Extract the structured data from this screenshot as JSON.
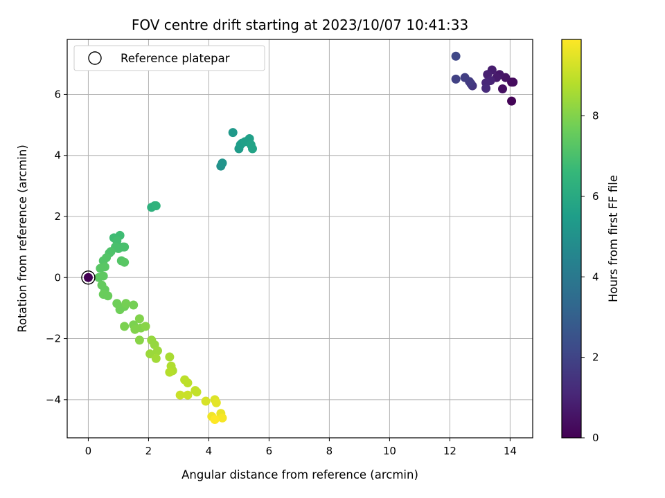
{
  "chart_data": {
    "type": "scatter",
    "title": "FOV centre drift starting at 2023/10/07 10:41:33",
    "xlabel": "Angular distance from reference (arcmin)",
    "ylabel": "Rotation from reference (arcmin)",
    "xlim": [
      -0.7,
      14.75
    ],
    "ylim": [
      -5.25,
      7.8
    ],
    "xticks": [
      0,
      2,
      4,
      6,
      8,
      10,
      12,
      14
    ],
    "yticks": [
      -4,
      -2,
      0,
      2,
      4,
      6
    ],
    "grid": true,
    "legend": {
      "position": "top-left",
      "entries": [
        "Reference platepar"
      ]
    },
    "reference_point": {
      "x": 0,
      "y": 0
    },
    "colorbar": {
      "label": "Hours from first FF file",
      "range": [
        0,
        9.9
      ],
      "ticks": [
        0,
        2,
        4,
        6,
        8
      ],
      "colormap": "viridis"
    },
    "points": [
      {
        "x": 14.05,
        "y": 5.78,
        "h": 0.1
      },
      {
        "x": 14.05,
        "y": 6.4,
        "h": 0.2
      },
      {
        "x": 14.1,
        "y": 6.4,
        "h": 0.3
      },
      {
        "x": 13.75,
        "y": 6.18,
        "h": 0.4
      },
      {
        "x": 13.85,
        "y": 6.55,
        "h": 0.5
      },
      {
        "x": 13.65,
        "y": 6.65,
        "h": 0.6
      },
      {
        "x": 13.55,
        "y": 6.55,
        "h": 0.7
      },
      {
        "x": 13.4,
        "y": 6.8,
        "h": 0.8
      },
      {
        "x": 13.25,
        "y": 6.65,
        "h": 0.9
      },
      {
        "x": 13.35,
        "y": 6.45,
        "h": 1.0
      },
      {
        "x": 13.2,
        "y": 6.38,
        "h": 1.1
      },
      {
        "x": 13.2,
        "y": 6.2,
        "h": 1.2
      },
      {
        "x": 12.75,
        "y": 6.28,
        "h": 1.5
      },
      {
        "x": 12.7,
        "y": 6.35,
        "h": 1.6
      },
      {
        "x": 12.65,
        "y": 6.42,
        "h": 1.7
      },
      {
        "x": 12.5,
        "y": 6.55,
        "h": 1.8
      },
      {
        "x": 12.2,
        "y": 6.5,
        "h": 1.9
      },
      {
        "x": 12.2,
        "y": 7.25,
        "h": 2.1
      },
      {
        "x": 4.4,
        "y": 3.65,
        "h": 5.0
      },
      {
        "x": 4.45,
        "y": 3.75,
        "h": 5.1
      },
      {
        "x": 4.8,
        "y": 4.75,
        "h": 5.3
      },
      {
        "x": 5.0,
        "y": 4.22,
        "h": 5.4
      },
      {
        "x": 5.1,
        "y": 4.4,
        "h": 5.5
      },
      {
        "x": 5.05,
        "y": 4.35,
        "h": 5.5
      },
      {
        "x": 5.2,
        "y": 4.45,
        "h": 5.6
      },
      {
        "x": 5.35,
        "y": 4.55,
        "h": 5.6
      },
      {
        "x": 5.4,
        "y": 4.35,
        "h": 5.7
      },
      {
        "x": 5.45,
        "y": 4.22,
        "h": 5.7
      },
      {
        "x": 2.1,
        "y": 2.3,
        "h": 6.3
      },
      {
        "x": 2.2,
        "y": 2.35,
        "h": 6.3
      },
      {
        "x": 2.25,
        "y": 2.35,
        "h": 6.4
      },
      {
        "x": 0.85,
        "y": 1.3,
        "h": 6.8
      },
      {
        "x": 1.05,
        "y": 1.38,
        "h": 6.8
      },
      {
        "x": 0.95,
        "y": 1.2,
        "h": 6.9
      },
      {
        "x": 1.15,
        "y": 1.0,
        "h": 6.9
      },
      {
        "x": 1.2,
        "y": 1.0,
        "h": 7.0
      },
      {
        "x": 1.0,
        "y": 0.95,
        "h": 7.0
      },
      {
        "x": 0.9,
        "y": 1.0,
        "h": 7.0
      },
      {
        "x": 0.75,
        "y": 0.85,
        "h": 7.1
      },
      {
        "x": 0.7,
        "y": 0.8,
        "h": 7.1
      },
      {
        "x": 0.6,
        "y": 0.65,
        "h": 7.2
      },
      {
        "x": 0.5,
        "y": 0.55,
        "h": 7.2
      },
      {
        "x": 1.1,
        "y": 0.55,
        "h": 7.2
      },
      {
        "x": 1.2,
        "y": 0.5,
        "h": 7.3
      },
      {
        "x": 0.55,
        "y": 0.35,
        "h": 7.3
      },
      {
        "x": 0.4,
        "y": 0.3,
        "h": 7.3
      },
      {
        "x": 0.5,
        "y": 0.05,
        "h": 7.4
      },
      {
        "x": 0.35,
        "y": 0.0,
        "h": 7.4
      },
      {
        "x": 0.45,
        "y": -0.25,
        "h": 7.5
      },
      {
        "x": 0.55,
        "y": -0.4,
        "h": 7.5
      },
      {
        "x": 0.5,
        "y": -0.55,
        "h": 7.6
      },
      {
        "x": 0.65,
        "y": -0.6,
        "h": 7.6
      },
      {
        "x": 0.95,
        "y": -0.85,
        "h": 7.7
      },
      {
        "x": 1.05,
        "y": -1.05,
        "h": 7.7
      },
      {
        "x": 1.2,
        "y": -0.95,
        "h": 7.7
      },
      {
        "x": 1.25,
        "y": -0.85,
        "h": 7.8
      },
      {
        "x": 1.5,
        "y": -0.9,
        "h": 7.8
      },
      {
        "x": 1.2,
        "y": -1.6,
        "h": 7.9
      },
      {
        "x": 1.5,
        "y": -1.55,
        "h": 7.9
      },
      {
        "x": 1.55,
        "y": -1.7,
        "h": 8.0
      },
      {
        "x": 1.7,
        "y": -1.35,
        "h": 8.0
      },
      {
        "x": 1.75,
        "y": -1.65,
        "h": 8.0
      },
      {
        "x": 1.9,
        "y": -1.6,
        "h": 8.1
      },
      {
        "x": 1.7,
        "y": -2.05,
        "h": 8.1
      },
      {
        "x": 2.1,
        "y": -2.05,
        "h": 8.3
      },
      {
        "x": 2.2,
        "y": -2.2,
        "h": 8.3
      },
      {
        "x": 2.3,
        "y": -2.4,
        "h": 8.4
      },
      {
        "x": 2.05,
        "y": -2.5,
        "h": 8.4
      },
      {
        "x": 2.25,
        "y": -2.65,
        "h": 8.5
      },
      {
        "x": 2.7,
        "y": -2.6,
        "h": 8.6
      },
      {
        "x": 2.75,
        "y": -2.9,
        "h": 8.7
      },
      {
        "x": 2.8,
        "y": -3.05,
        "h": 8.7
      },
      {
        "x": 2.7,
        "y": -3.1,
        "h": 8.8
      },
      {
        "x": 3.2,
        "y": -3.35,
        "h": 8.9
      },
      {
        "x": 3.3,
        "y": -3.45,
        "h": 8.9
      },
      {
        "x": 3.55,
        "y": -3.7,
        "h": 9.0
      },
      {
        "x": 3.6,
        "y": -3.75,
        "h": 9.0
      },
      {
        "x": 3.05,
        "y": -3.85,
        "h": 9.1
      },
      {
        "x": 3.3,
        "y": -3.85,
        "h": 9.1
      },
      {
        "x": 3.9,
        "y": -4.05,
        "h": 9.3
      },
      {
        "x": 4.2,
        "y": -4.0,
        "h": 9.4
      },
      {
        "x": 4.25,
        "y": -4.1,
        "h": 9.5
      },
      {
        "x": 4.4,
        "y": -4.45,
        "h": 9.6
      },
      {
        "x": 4.1,
        "y": -4.55,
        "h": 9.7
      },
      {
        "x": 4.45,
        "y": -4.6,
        "h": 9.8
      },
      {
        "x": 4.2,
        "y": -4.65,
        "h": 9.9
      }
    ]
  }
}
